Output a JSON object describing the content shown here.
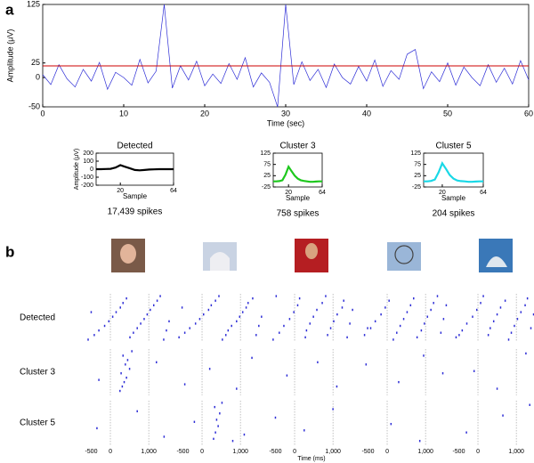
{
  "chart_data": [
    {
      "type": "line",
      "panel_label": "a",
      "xlabel": "Time (sec)",
      "ylabel": "Amplitude (μV)",
      "xlim": [
        0,
        60
      ],
      "xticks": [
        0,
        10,
        20,
        30,
        40,
        50,
        60
      ],
      "ylim": [
        -50,
        125
      ],
      "yticks": [
        -50,
        0,
        25,
        125
      ],
      "threshold": 20,
      "threshold_color": "#cc0000",
      "x": [
        0,
        1,
        2,
        3,
        4,
        5,
        6,
        7,
        8,
        9,
        10,
        11,
        12,
        13,
        14,
        15,
        16,
        17,
        18,
        19,
        20,
        21,
        22,
        23,
        24,
        25,
        26,
        27,
        28,
        29,
        30,
        31,
        32,
        33,
        34,
        35,
        36,
        37,
        38,
        39,
        40,
        41,
        42,
        43,
        44,
        45,
        46,
        47,
        48,
        49,
        50,
        51,
        52,
        53,
        54,
        55,
        56,
        57,
        58,
        59,
        60
      ],
      "series": [
        {
          "color": "#2d2dd6",
          "values": [
            5,
            -12,
            22,
            -2,
            -16,
            14,
            -6,
            26,
            -20,
            9,
            0,
            -13,
            31,
            -9,
            11,
            125,
            -18,
            20,
            -4,
            28,
            -14,
            6,
            -10,
            24,
            -3,
            34,
            -16,
            8,
            -8,
            -50,
            125,
            -12,
            27,
            -5,
            14,
            -17,
            23,
            0,
            -11,
            19,
            -6,
            30,
            -15,
            12,
            -3,
            40,
            48,
            -19,
            10,
            -7,
            25,
            -13,
            18,
            0,
            -14,
            22,
            -8,
            16,
            -11,
            29,
            -4
          ]
        }
      ]
    },
    {
      "type": "line",
      "title": "Detected",
      "caption": "17,439 spikes",
      "xlabel": "Sample",
      "ylabel": "Amplitude (μV)",
      "xlim": [
        0,
        64
      ],
      "xticks": [
        20,
        64
      ],
      "ylim": [
        -200,
        200
      ],
      "yticks": [
        -200,
        -100,
        0,
        100,
        200
      ],
      "x": [
        0,
        4,
        8,
        12,
        16,
        20,
        24,
        28,
        32,
        36,
        40,
        44,
        48,
        52,
        56,
        60,
        64
      ],
      "series": [
        {
          "color": "#000000",
          "values": [
            0,
            0,
            2,
            5,
            20,
            50,
            30,
            10,
            -10,
            -15,
            -10,
            -5,
            -2,
            0,
            0,
            0,
            0
          ]
        }
      ]
    },
    {
      "type": "line",
      "title": "Cluster 3",
      "caption": "758 spikes",
      "xlabel": "Sample",
      "xlim": [
        0,
        64
      ],
      "xticks": [
        20,
        64
      ],
      "ylim": [
        -25,
        125
      ],
      "yticks": [
        -25,
        25,
        75,
        125
      ],
      "x": [
        0,
        4,
        8,
        12,
        16,
        20,
        24,
        28,
        32,
        36,
        40,
        44,
        48,
        52,
        56,
        60,
        64
      ],
      "series": [
        {
          "color": "#1ec81e",
          "values": [
            0,
            0,
            1,
            5,
            30,
            65,
            45,
            25,
            12,
            5,
            2,
            0,
            -2,
            -2,
            -1,
            0,
            0
          ]
        }
      ]
    },
    {
      "type": "line",
      "title": "Cluster 5",
      "caption": "204 spikes",
      "xlabel": "Sample",
      "xlim": [
        0,
        64
      ],
      "xticks": [
        20,
        64
      ],
      "ylim": [
        -25,
        125
      ],
      "yticks": [
        -25,
        25,
        75,
        125
      ],
      "x": [
        0,
        4,
        8,
        12,
        16,
        20,
        24,
        28,
        32,
        36,
        40,
        44,
        48,
        52,
        56,
        60,
        64
      ],
      "series": [
        {
          "color": "#19d8e6",
          "values": [
            0,
            0,
            2,
            8,
            40,
            80,
            55,
            28,
            12,
            4,
            1,
            0,
            -2,
            -2,
            -1,
            0,
            0
          ]
        }
      ]
    },
    {
      "type": "raster",
      "panel_label": "b",
      "xlabel": "Time (ms)",
      "color": "#2d2dd6",
      "rows": [
        "Detected",
        "Cluster 3",
        "Cluster 5"
      ],
      "xlim": [
        -650,
        1600
      ],
      "xticks": [
        -500,
        0,
        {
          "value": 1000,
          "label": "1,000"
        }
      ],
      "ylim": [
        0,
        21
      ],
      "panels": [
        [
          {
            "x": [
              -580,
              -420,
              -300,
              -150,
              -40,
              60,
              150,
              260,
              330,
              420,
              510,
              600,
              700,
              790,
              880,
              960,
              1040,
              1130,
              1220,
              1300,
              1390,
              1460,
              1530,
              -500
            ],
            "y": [
              1,
              3,
              5,
              7,
              9,
              11,
              13,
              15,
              17,
              19,
              2,
              4,
              6,
              8,
              10,
              12,
              14,
              16,
              18,
              20,
              1,
              5,
              9,
              13
            ]
          },
          {
            "x": [
              -600,
              -450,
              -320,
              -170,
              -60,
              40,
              170,
              240,
              350,
              440,
              530,
              620,
              680,
              770,
              900,
              980,
              1060,
              1150,
              1200,
              1320,
              1410,
              1480,
              1550,
              -520
            ],
            "y": [
              2,
              4,
              6,
              8,
              10,
              12,
              14,
              16,
              18,
              20,
              1,
              3,
              5,
              7,
              9,
              11,
              13,
              15,
              17,
              19,
              3,
              7,
              11,
              15
            ]
          },
          {
            "x": [
              -560,
              -400,
              -280,
              -130,
              -20,
              80,
              130,
              280,
              310,
              400,
              490,
              580,
              720,
              810,
              860,
              940,
              1020,
              1110,
              1240,
              1280,
              1370,
              1440,
              1510,
              -480
            ],
            "y": [
              1,
              4,
              7,
              10,
              13,
              16,
              19,
              2,
              5,
              8,
              11,
              14,
              17,
              20,
              3,
              6,
              9,
              12,
              15,
              18,
              2,
              8,
              14,
              20
            ]
          },
          {
            "x": [
              -590,
              -430,
              -310,
              -160,
              -50,
              50,
              160,
              250,
              340,
              430,
              520,
              610,
              690,
              780,
              890,
              970,
              1050,
              1140,
              1210,
              1310,
              1400,
              1470,
              1540,
              -510
            ],
            "y": [
              3,
              6,
              9,
              12,
              15,
              18,
              1,
              4,
              7,
              10,
              13,
              16,
              19,
              2,
              5,
              8,
              11,
              14,
              17,
              20,
              4,
              10,
              16,
              6
            ]
          },
          {
            "x": [
              -570,
              -410,
              -290,
              -140,
              -30,
              70,
              140,
              270,
              320,
              410,
              500,
              590,
              710,
              800,
              870,
              950,
              1030,
              1120,
              1230,
              1290,
              1380,
              1450,
              1520,
              -490
            ],
            "y": [
              2,
              5,
              8,
              11,
              14,
              17,
              20,
              3,
              6,
              9,
              12,
              15,
              18,
              1,
              4,
              7,
              10,
              13,
              16,
              19,
              6,
              12,
              18,
              3
            ]
          }
        ],
        [
          {
            "x": [
              250,
              310,
              360,
              420,
              280,
              500,
              390,
              450,
              330,
              560,
              -300,
              1200
            ],
            "y": [
              2,
              4,
              6,
              8,
              10,
              12,
              14,
              16,
              18,
              20,
              7,
              15
            ]
          },
          {
            "x": [
              -450,
              200,
              900,
              1300
            ],
            "y": [
              5,
              12,
              3,
              17
            ]
          },
          {
            "x": [
              -200,
              600,
              1100
            ],
            "y": [
              9,
              15,
              4
            ]
          },
          {
            "x": [
              -550,
              300,
              950,
              1450
            ],
            "y": [
              14,
              6,
              18,
              10
            ]
          },
          {
            "x": [
              -100,
              500,
              1250
            ],
            "y": [
              11,
              3,
              19
            ]
          }
        ],
        [
          {
            "x": [
              -350,
              700,
              1400
            ],
            "y": [
              8,
              16,
              4
            ]
          },
          {
            "x": [
              300,
              350,
              420,
              380,
              460,
              330,
              520,
              800,
              -200,
              1100
            ],
            "y": [
              3,
              6,
              9,
              12,
              15,
              18,
              20,
              2,
              11,
              5
            ]
          },
          {
            "x": [
              -500,
              250,
              1000
            ],
            "y": [
              13,
              7,
              17
            ]
          },
          {
            "x": [
              100,
              850
            ],
            "y": [
              10,
              2
            ]
          },
          {
            "x": [
              -300,
              650,
              1350
            ],
            "y": [
              6,
              14,
              19
            ]
          }
        ]
      ]
    }
  ]
}
